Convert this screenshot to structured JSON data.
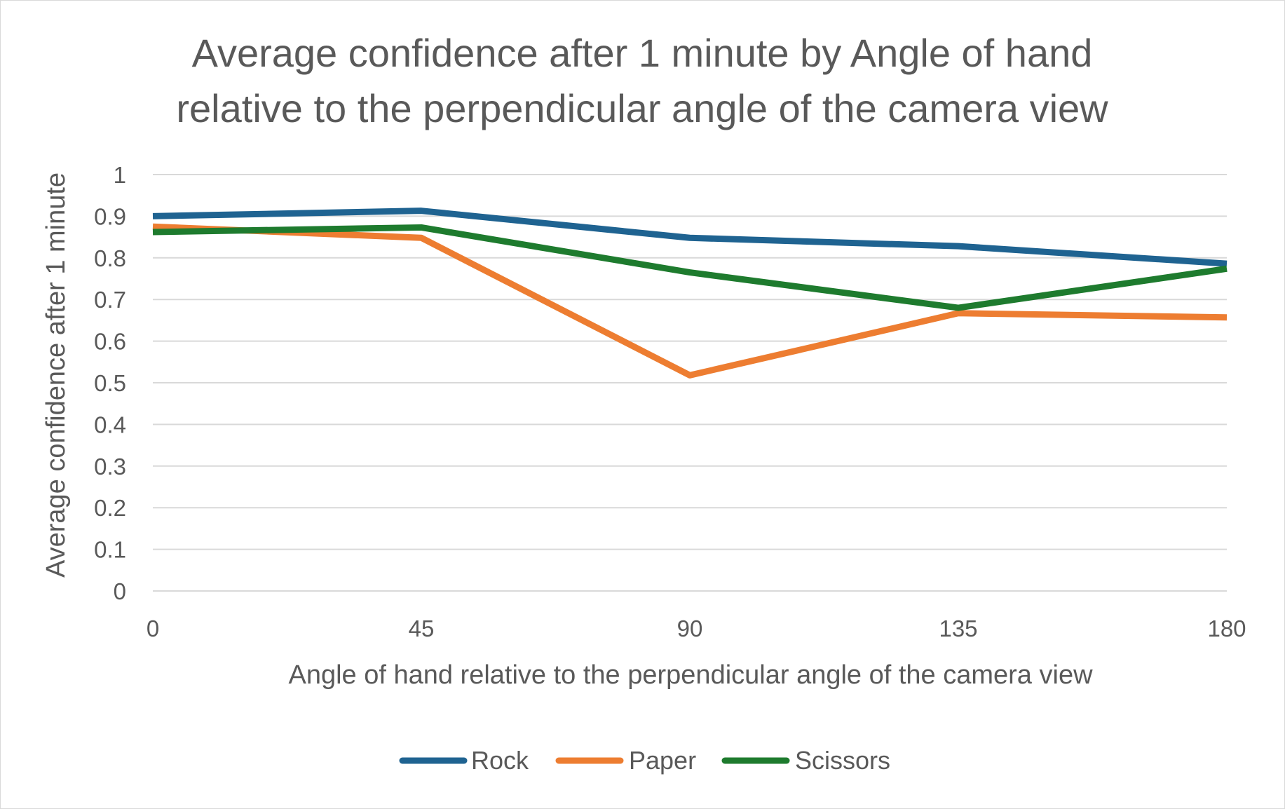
{
  "chart_data": {
    "type": "line",
    "title_lines": [
      "Average confidence after 1 minute by Angle of hand",
      "relative to the perpendicular angle of the camera view"
    ],
    "xlabel": "Angle of hand relative to the perpendicular angle of the camera view",
    "ylabel": "Average confidence after 1 minute",
    "x": [
      0,
      45,
      90,
      135,
      180
    ],
    "x_tick_labels": [
      "0",
      "45",
      "90",
      "135",
      "180"
    ],
    "ylim": [
      0,
      1
    ],
    "y_tick_labels": [
      "0",
      "0.1",
      "0.2",
      "0.3",
      "0.4",
      "0.5",
      "0.6",
      "0.7",
      "0.8",
      "0.9",
      "1"
    ],
    "grid": true,
    "legend_position": "bottom",
    "series": [
      {
        "name": "Rock",
        "color": "#1f6391",
        "values": [
          0.9,
          0.913,
          0.848,
          0.828,
          0.786
        ]
      },
      {
        "name": "Paper",
        "color": "#ed7d31",
        "values": [
          0.875,
          0.848,
          0.518,
          0.667,
          0.657
        ]
      },
      {
        "name": "Scissors",
        "color": "#1e7b2e",
        "values": [
          0.862,
          0.873,
          0.765,
          0.68,
          0.774
        ]
      }
    ]
  }
}
